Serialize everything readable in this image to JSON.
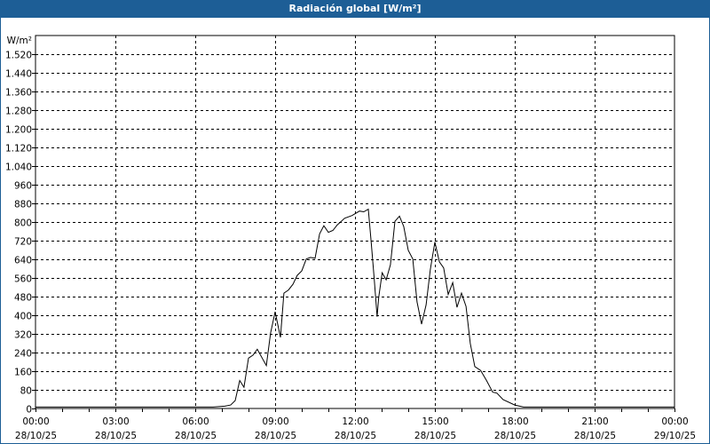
{
  "window": {
    "title": "Radiación global [W/m²]"
  },
  "chart_data": {
    "type": "line",
    "title": "Radiación global [W/m²]",
    "ylabel": "W/m²",
    "xlabel": "",
    "ylim": [
      0,
      1600
    ],
    "xlim_hours": [
      0,
      24
    ],
    "grid": true,
    "line_color": "#000000",
    "y_ticks": [
      0,
      80,
      160,
      240,
      320,
      400,
      480,
      560,
      640,
      720,
      800,
      880,
      960,
      1040,
      1120,
      1200,
      1280,
      1360,
      1440,
      1520
    ],
    "y_tick_labels": [
      "0",
      "80",
      "160",
      "240",
      "320",
      "400",
      "480",
      "560",
      "640",
      "720",
      "800",
      "880",
      "960",
      "1.040",
      "1.120",
      "1.200",
      "1.280",
      "1.360",
      "1.440",
      "1.520"
    ],
    "x_ticks": [
      {
        "hour": 0,
        "time": "00:00",
        "date": "28/10/25"
      },
      {
        "hour": 3,
        "time": "03:00",
        "date": "28/10/25"
      },
      {
        "hour": 6,
        "time": "06:00",
        "date": "28/10/25"
      },
      {
        "hour": 9,
        "time": "09:00",
        "date": "28/10/25"
      },
      {
        "hour": 12,
        "time": "12:00",
        "date": "28/10/25"
      },
      {
        "hour": 15,
        "time": "15:00",
        "date": "28/10/25"
      },
      {
        "hour": 18,
        "time": "18:00",
        "date": "28/10/25"
      },
      {
        "hour": 21,
        "time": "21:00",
        "date": "28/10/25"
      },
      {
        "hour": 24,
        "time": "00:00",
        "date": "29/10/25"
      }
    ],
    "series": [
      {
        "x_hours": [
          0,
          6.67,
          7.11,
          7.33,
          7.5,
          7.67,
          7.83,
          8.0,
          8.17,
          8.33,
          8.67,
          8.83,
          9.0,
          9.2,
          9.33,
          9.5,
          9.67,
          9.83,
          10.0,
          10.17,
          10.33,
          10.5,
          10.67,
          10.83,
          11.0,
          11.17,
          11.33,
          11.61,
          11.89,
          12.17,
          12.33,
          12.5,
          12.61,
          12.72,
          12.83,
          12.89,
          13.02,
          13.17,
          13.33,
          13.5,
          13.67,
          13.83,
          14.0,
          14.17,
          14.33,
          14.5,
          14.67,
          14.83,
          15.0,
          15.17,
          15.33,
          15.5,
          15.67,
          15.83,
          16.0,
          16.17,
          16.33,
          16.5,
          16.72,
          16.94,
          17.17,
          17.33,
          17.56,
          18.0,
          18.33,
          24
        ],
        "values": [
          6,
          6,
          10,
          15,
          34,
          120,
          91,
          216,
          229,
          254,
          184,
          324,
          415,
          305,
          495,
          508,
          533,
          571,
          590,
          641,
          648,
          644,
          749,
          784,
          756,
          764,
          787,
          816,
          828,
          847,
          844,
          855,
          711,
          559,
          394,
          476,
          582,
          552,
          616,
          803,
          825,
          781,
          679,
          641,
          457,
          362,
          444,
          597,
          714,
          629,
          603,
          489,
          540,
          434,
          495,
          438,
          279,
          180,
          163,
          120,
          70,
          66,
          38,
          15,
          6,
          6
        ]
      }
    ]
  }
}
